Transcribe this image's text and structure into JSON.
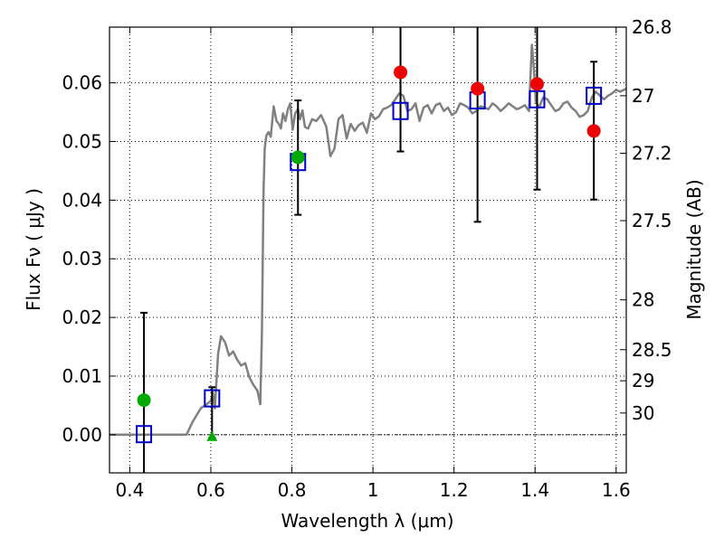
{
  "chart_data": {
    "type": "scatter",
    "xlabel": "Wavelength  λ (μm)",
    "ylabel": "Flux  Fν  ( μJy )",
    "y2label": "Magnitude (AB)",
    "xlim": [
      0.35,
      1.625
    ],
    "ylim": [
      -0.0065,
      0.0695
    ],
    "x_ticks": [
      {
        "value": 0.4,
        "label": "0.4"
      },
      {
        "value": 0.6,
        "label": "0.6"
      },
      {
        "value": 0.8,
        "label": "0.8"
      },
      {
        "value": 1.0,
        "label": "1"
      },
      {
        "value": 1.2,
        "label": "1.2"
      },
      {
        "value": 1.4,
        "label": "1.4"
      },
      {
        "value": 1.6,
        "label": "1.6"
      }
    ],
    "y_ticks": [
      {
        "value": 0.0,
        "label": "0.00"
      },
      {
        "value": 0.01,
        "label": "0.01"
      },
      {
        "value": 0.02,
        "label": "0.02"
      },
      {
        "value": 0.03,
        "label": "0.03"
      },
      {
        "value": 0.04,
        "label": "0.04"
      },
      {
        "value": 0.05,
        "label": "0.05"
      },
      {
        "value": 0.06,
        "label": "0.06"
      }
    ],
    "y2_ticks": [
      {
        "label": "26.8",
        "flux": 0.0695
      },
      {
        "label": "27",
        "flux": 0.0578
      },
      {
        "label": "27.2",
        "flux": 0.048
      },
      {
        "label": "27.5",
        "flux": 0.0365
      },
      {
        "label": "28",
        "flux": 0.023
      },
      {
        "label": "28.5",
        "flux": 0.0145
      },
      {
        "label": "29",
        "flux": 0.0092
      },
      {
        "label": "30",
        "flux": 0.0037
      }
    ],
    "grid": true,
    "colors": {
      "sed": "#808080",
      "model_box": "#0000cc",
      "green": "#00aa00",
      "red": "#ee0000",
      "errorbar": "#000000",
      "zero_line": "#000000"
    },
    "sed_model": {
      "x": [
        0.35,
        0.54,
        0.555,
        0.575,
        0.59,
        0.6,
        0.605,
        0.61,
        0.618,
        0.625,
        0.635,
        0.645,
        0.655,
        0.665,
        0.675,
        0.685,
        0.695,
        0.705,
        0.715,
        0.722,
        0.726,
        0.73,
        0.733,
        0.737,
        0.742,
        0.748,
        0.755,
        0.762,
        0.768,
        0.773,
        0.778,
        0.784,
        0.79,
        0.796,
        0.802,
        0.808,
        0.815,
        0.82,
        0.826,
        0.832,
        0.84,
        0.85,
        0.86,
        0.872,
        0.885,
        0.895,
        0.905,
        0.915,
        0.925,
        0.935,
        0.945,
        0.955,
        0.965,
        0.975,
        0.985,
        0.995,
        1.005,
        1.015,
        1.025,
        1.035,
        1.045,
        1.055,
        1.065,
        1.075,
        1.085,
        1.095,
        1.105,
        1.115,
        1.125,
        1.135,
        1.145,
        1.155,
        1.165,
        1.175,
        1.185,
        1.195,
        1.205,
        1.215,
        1.225,
        1.235,
        1.245,
        1.255,
        1.265,
        1.275,
        1.285,
        1.295,
        1.305,
        1.315,
        1.325,
        1.335,
        1.345,
        1.355,
        1.365,
        1.375,
        1.385,
        1.392,
        1.397,
        1.402,
        1.41,
        1.42,
        1.43,
        1.44,
        1.45,
        1.46,
        1.47,
        1.48,
        1.49,
        1.5,
        1.51,
        1.52,
        1.53,
        1.54,
        1.55,
        1.56,
        1.57,
        1.58,
        1.59,
        1.6,
        1.61,
        1.625
      ],
      "y": [
        0.0,
        0.0,
        0.0022,
        0.0045,
        0.0052,
        0.0058,
        0.0072,
        0.0045,
        0.0138,
        0.0168,
        0.0158,
        0.0135,
        0.0142,
        0.0128,
        0.0118,
        0.0122,
        0.0098,
        0.0085,
        0.0075,
        0.0052,
        0.0172,
        0.0415,
        0.0488,
        0.051,
        0.0516,
        0.0508,
        0.056,
        0.0535,
        0.053,
        0.0522,
        0.0548,
        0.0535,
        0.0555,
        0.0565,
        0.052,
        0.0548,
        0.0555,
        0.0538,
        0.0553,
        0.0525,
        0.0522,
        0.0538,
        0.0535,
        0.0545,
        0.0525,
        0.0475,
        0.0488,
        0.0538,
        0.0545,
        0.0505,
        0.053,
        0.0518,
        0.0528,
        0.0532,
        0.0515,
        0.0548,
        0.0538,
        0.0543,
        0.0555,
        0.0558,
        0.0562,
        0.0572,
        0.0582,
        0.0578,
        0.0552,
        0.0555,
        0.0565,
        0.0535,
        0.0558,
        0.0562,
        0.0548,
        0.0562,
        0.0565,
        0.0552,
        0.0558,
        0.0545,
        0.055,
        0.0565,
        0.0562,
        0.0558,
        0.0548,
        0.0552,
        0.056,
        0.0558,
        0.0555,
        0.0565,
        0.056,
        0.0552,
        0.0558,
        0.0565,
        0.056,
        0.0555,
        0.0558,
        0.0562,
        0.0552,
        0.0665,
        0.0625,
        0.0568,
        0.0558,
        0.0575,
        0.0572,
        0.0562,
        0.0552,
        0.0555,
        0.0565,
        0.0568,
        0.0558,
        0.0552,
        0.0542,
        0.0545,
        0.0552,
        0.0575,
        0.0585,
        0.0578,
        0.0572,
        0.0578,
        0.0582,
        0.0588,
        0.0585,
        0.059
      ]
    },
    "model_boxes": {
      "x": [
        0.435,
        0.603,
        0.815,
        1.068,
        1.258,
        1.405,
        1.545
      ],
      "y": [
        0.0001,
        0.0062,
        0.0465,
        0.0552,
        0.057,
        0.0572,
        0.0578
      ]
    },
    "error_bars": {
      "x": [
        0.435,
        0.603,
        0.815,
        1.068,
        1.258,
        1.405,
        1.545
      ],
      "low": [
        -0.0065,
        -0.0005,
        0.0375,
        0.0483,
        0.0363,
        0.0418,
        0.0401
      ],
      "high": [
        0.0208,
        0.0081,
        0.057,
        0.0715,
        0.0715,
        0.0715,
        0.0636
      ]
    },
    "green_circles": {
      "x": [
        0.435,
        0.815
      ],
      "y": [
        0.0059,
        0.0473
      ]
    },
    "green_triangles": {
      "x": [
        0.603
      ],
      "y": [
        -0.0003
      ]
    },
    "red_circles": {
      "x": [
        1.068,
        1.258,
        1.405,
        1.545
      ],
      "y": [
        0.0618,
        0.059,
        0.0598,
        0.0518
      ]
    }
  }
}
